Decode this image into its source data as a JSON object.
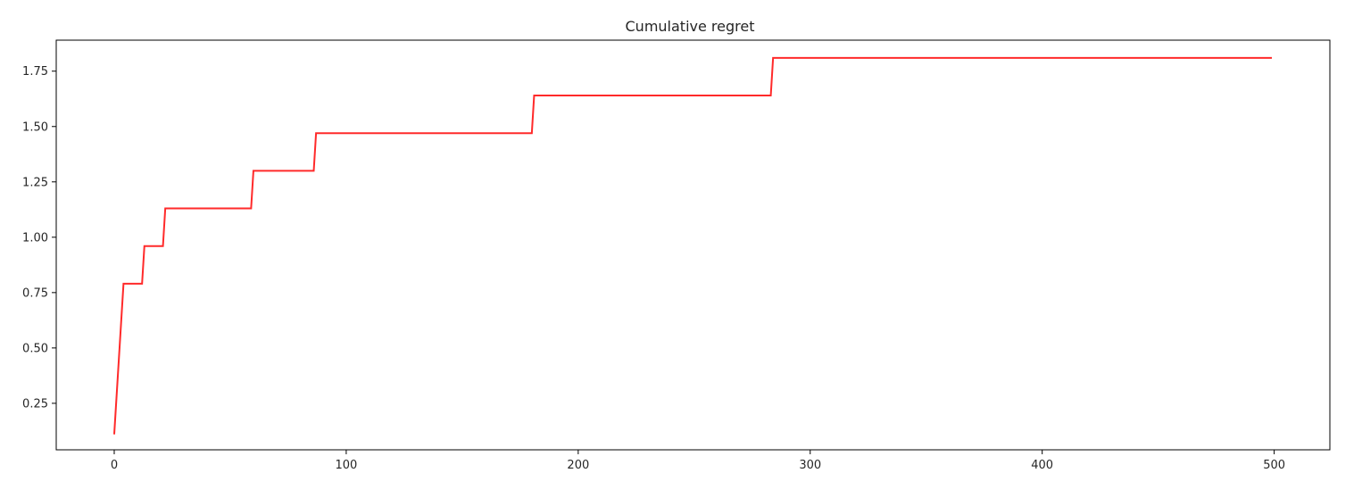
{
  "chart_data": {
    "type": "line",
    "title": "Cumulative regret",
    "xlabel": "",
    "ylabel": "",
    "xlim": [
      -25,
      524
    ],
    "ylim": [
      0.04,
      1.89
    ],
    "xticks": [
      0,
      100,
      200,
      300,
      400,
      500
    ],
    "xtick_labels": [
      "0",
      "100",
      "200",
      "300",
      "400",
      "500"
    ],
    "yticks": [
      0.25,
      0.5,
      0.75,
      1.0,
      1.25,
      1.5,
      1.75
    ],
    "ytick_labels": [
      "0.25",
      "0.50",
      "0.75",
      "1.00",
      "1.25",
      "1.50",
      "1.75"
    ],
    "grid": false,
    "series": [
      {
        "name": "Cumulative regret",
        "color": "#ff2a2a",
        "x": [
          0,
          4,
          12,
          13,
          21,
          22,
          59,
          60,
          86,
          87,
          180,
          181,
          283,
          284,
          499
        ],
        "y": [
          0.11,
          0.79,
          0.79,
          0.96,
          0.96,
          1.13,
          1.13,
          1.3,
          1.3,
          1.47,
          1.47,
          1.64,
          1.64,
          1.81,
          1.81
        ]
      }
    ]
  }
}
